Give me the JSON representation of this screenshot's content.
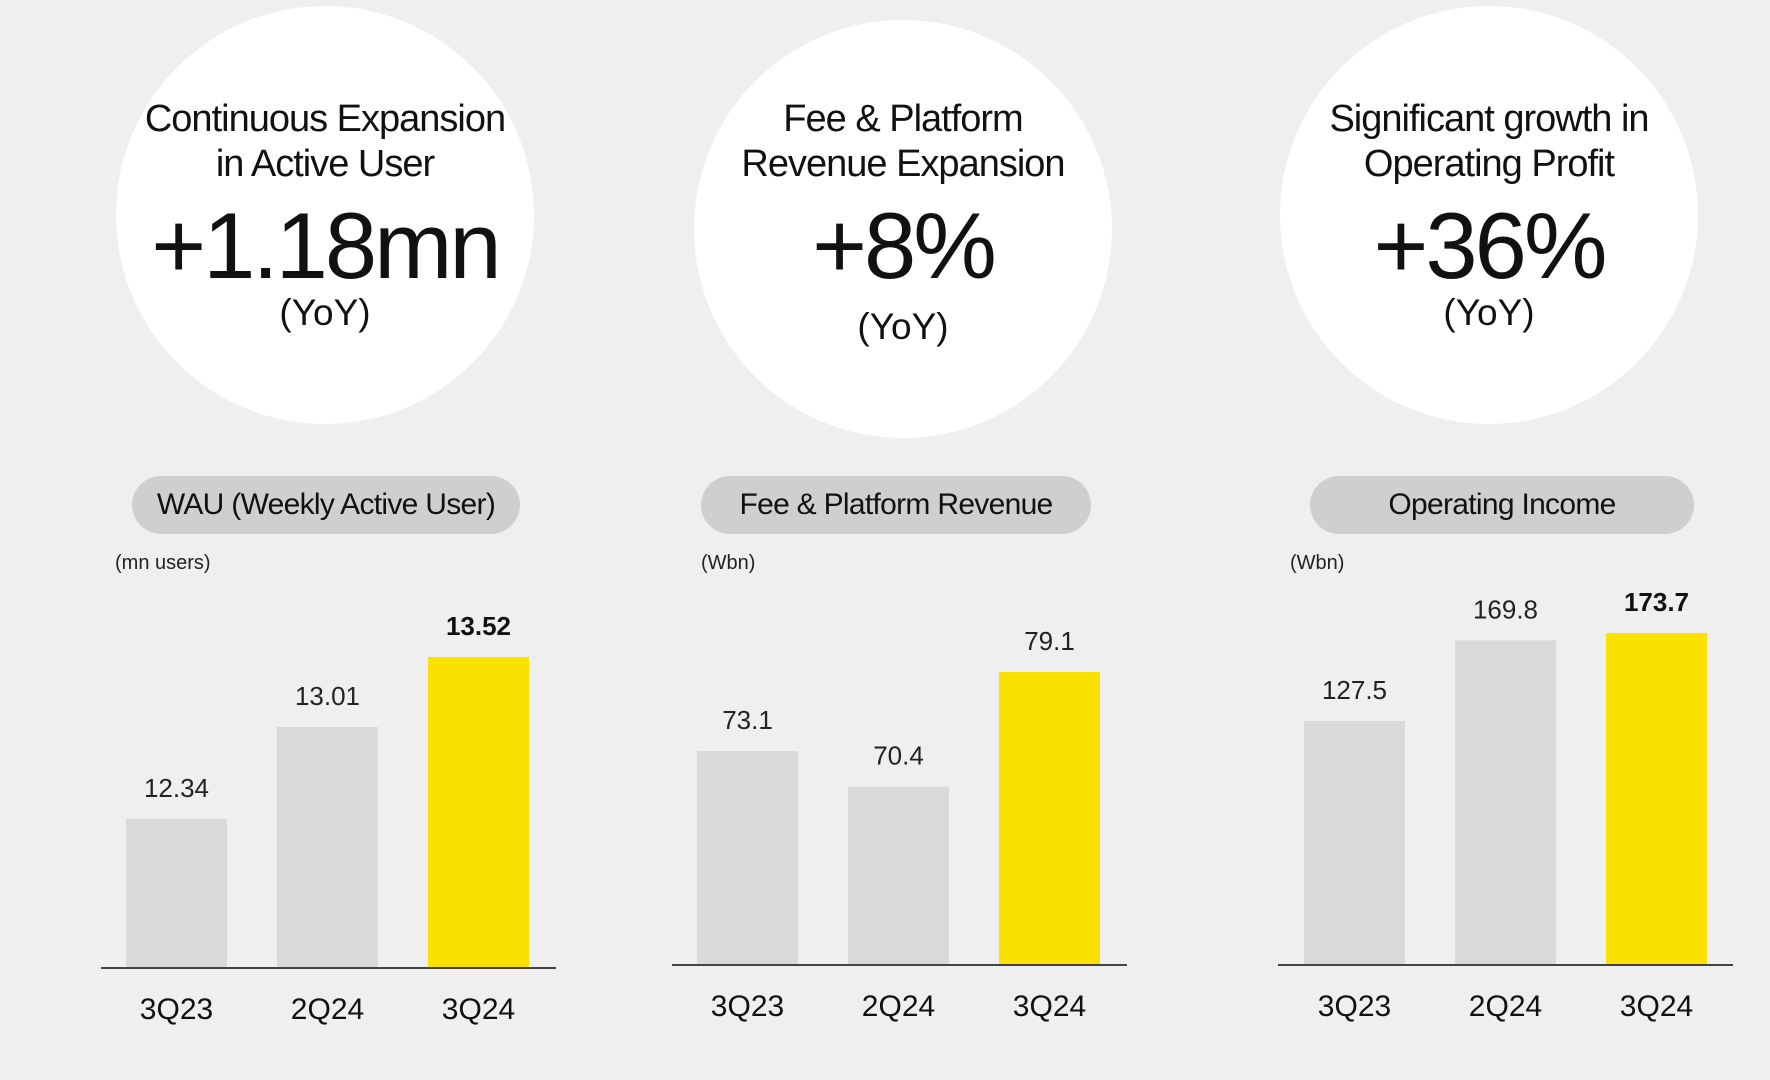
{
  "colors": {
    "background": "#efefef",
    "circle": "#ffffff",
    "pill": "#cfcfcf",
    "bar_default": "#d9d9d9",
    "bar_highlight": "#fae100"
  },
  "panels": [
    {
      "circle": {
        "title_lines": [
          "Continuous Expansion",
          "in Active User"
        ],
        "value": "+1.18mn",
        "note": "(YoY)"
      },
      "pill": "WAU (Weekly Active User)",
      "unit": "(mn users)"
    },
    {
      "circle": {
        "title_lines": [
          "Fee & Platform",
          "Revenue Expansion"
        ],
        "value": "+8%",
        "note": "(YoY)"
      },
      "pill": "Fee & Platform Revenue",
      "unit": "(Wbn)"
    },
    {
      "circle": {
        "title_lines": [
          "Significant growth in",
          "Operating Profit"
        ],
        "value": "+36%",
        "note": "(YoY)"
      },
      "pill": "Operating Income",
      "unit": "(Wbn)"
    }
  ],
  "chart_data": [
    {
      "type": "bar",
      "title": "WAU (Weekly Active User)",
      "ylabel": "(mn users)",
      "categories": [
        "3Q23",
        "2Q24",
        "3Q24"
      ],
      "values": [
        12.34,
        13.01,
        13.52
      ],
      "value_labels": [
        "12.34",
        "13.01",
        "13.52"
      ],
      "highlight_index": 2,
      "bold_label_index": 2,
      "ylim": [
        11.26,
        13.52
      ],
      "grid": false
    },
    {
      "type": "bar",
      "title": "Fee & Platform Revenue",
      "ylabel": "(Wbn)",
      "categories": [
        "3Q23",
        "2Q24",
        "3Q24"
      ],
      "values": [
        73.1,
        70.4,
        79.1
      ],
      "value_labels": [
        "73.1",
        "70.4",
        "79.1"
      ],
      "highlight_index": 2,
      "bold_label_index": -1,
      "ylim": [
        56.94,
        79.1
      ],
      "grid": false
    },
    {
      "type": "bar",
      "title": "Operating Income",
      "ylabel": "(Wbn)",
      "categories": [
        "3Q23",
        "2Q24",
        "3Q24"
      ],
      "values": [
        127.5,
        169.8,
        173.7
      ],
      "value_labels": [
        "127.5",
        "169.8",
        "173.7"
      ],
      "highlight_index": 2,
      "bold_label_index": 2,
      "ylim": [
        0,
        173.7
      ],
      "grid": false
    }
  ]
}
